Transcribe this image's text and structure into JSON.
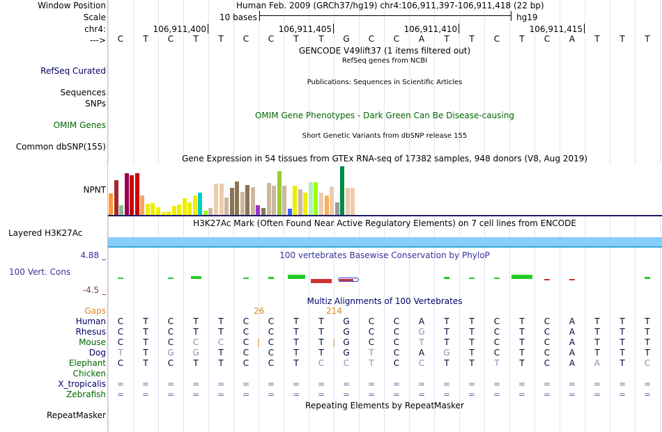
{
  "left_labels": {
    "window_position": "Window Position",
    "scale": "Scale",
    "chrom": "chr4:",
    "arrow": "--->",
    "refseq": "RefSeq Curated",
    "sequences": "Sequences",
    "snps": "SNPs",
    "omim": "OMIM Genes",
    "dbsnp": "Common dbSNP(155)",
    "npnt": "NPNT",
    "h3k27ac": "Layered H3K27Ac",
    "cons_max": "4.88 _",
    "cons_label": "100 Vert. Cons",
    "cons_min": "-4.5 _",
    "gaps": "Gaps",
    "species": [
      "Human",
      "Rhesus",
      "Mouse",
      "Dog",
      "Elephant",
      "Chicken",
      "X_tropicalis",
      "Zebrafish"
    ],
    "repeatmasker": "RepeatMasker"
  },
  "header": {
    "position": "Human Feb. 2009 (GRCh37/hg19)   chr4:106,911,397-106,911,418 (22 bp)",
    "scale_text": "10 bases",
    "assembly": "hg19",
    "coordinates": [
      "106,911,400",
      "106,911,405",
      "106,911,410",
      "106,911,415"
    ]
  },
  "sequence": [
    "C",
    "T",
    "C",
    "T",
    "T",
    "C",
    "C",
    "T",
    "T",
    "G",
    "C",
    "C",
    "A",
    "T",
    "T",
    "C",
    "T",
    "C",
    "A",
    "T",
    "T",
    "T"
  ],
  "tracks": {
    "gencode": "GENCODE V49lift37 (1 items filtered out)",
    "refseq": "RefSeq genes from NCBI",
    "publications": "Publications: Sequences in Scientific Articles",
    "omim": "OMIM Gene Phenotypes - Dark Green Can Be Disease-causing",
    "dbsnp": "Short Genetic Variants from dbSNP release 155",
    "gtex": "Gene Expression in 54 tissues from GTEx RNA-seq of 17382 samples, 948 donors (V8, Aug 2019)",
    "h3k27ac": "H3K27Ac Mark (Often Found Near Active Regulatory Elements) on 7 cell lines from ENCODE",
    "phylop": "100 vertebrates Basewise Conservation by PhyloP",
    "multiz": "Multiz Alignments of 100 Vertebrates",
    "gap_labels": [
      "26",
      "214"
    ],
    "repeatmasker": "Repeating Elements by RepeatMasker"
  },
  "alignment": {
    "Human": [
      "C",
      "T",
      "C",
      "T",
      "T",
      "C",
      "C",
      "T",
      "T",
      "G",
      "C",
      "C",
      "A",
      "T",
      "T",
      "C",
      "T",
      "C",
      "A",
      "T",
      "T",
      "T"
    ],
    "Rhesus": [
      "C",
      "T",
      "C",
      "T",
      "T",
      "C",
      "C",
      "T",
      "T",
      "G",
      "C",
      "C",
      "G",
      "T",
      "T",
      "C",
      "T",
      "C",
      "A",
      "T",
      "T",
      "T"
    ],
    "Mouse": [
      "C",
      "T",
      "C",
      "C",
      "C",
      "C",
      "|C",
      "T",
      "T",
      "|G",
      "C",
      "C",
      "T",
      "T",
      "T",
      "C",
      "T",
      "C",
      "A",
      "T",
      "T",
      "T"
    ],
    "Dog": [
      "T",
      "T",
      "G",
      "G",
      "T",
      "C",
      "C",
      "T",
      "T",
      "G",
      "T",
      "C",
      "A",
      "G",
      "T",
      "C",
      "T",
      "C",
      "A",
      "T",
      "T",
      "T"
    ],
    "Elephant": [
      "C",
      "T",
      "C",
      "T",
      "T",
      "C",
      "C",
      "T",
      "C",
      "C",
      "T",
      "C",
      "C",
      "T",
      "T",
      "T",
      "T",
      "C",
      "A",
      "A",
      "T",
      "C"
    ],
    "Chicken": [],
    "X_tropicalis": [
      "=",
      "=",
      "=",
      "=",
      "=",
      "=",
      "=",
      "=",
      "=",
      "=",
      "=",
      "=",
      "=",
      "=",
      "=",
      "=",
      "=",
      "=",
      "=",
      "=",
      "=",
      "="
    ],
    "Zebrafish": [
      "=",
      "=",
      "=",
      "=",
      "=",
      "=",
      "=",
      "=",
      "=",
      "=",
      "=",
      "=",
      "=",
      "=",
      "=",
      "=",
      "=",
      "=",
      "=",
      "=",
      "=",
      "="
    ]
  },
  "gtex_values": [
    {
      "color": "#ff9933",
      "v": 30
    },
    {
      "color": "#a52a2a",
      "v": 48
    },
    {
      "color": "#8fbc8f",
      "v": 13
    },
    {
      "color": "#99004c",
      "v": 58
    },
    {
      "color": "#cc0000",
      "v": 55
    },
    {
      "color": "#cc0000",
      "v": 58
    },
    {
      "color": "#f4a460",
      "v": 27
    },
    {
      "color": "#eeee00",
      "v": 15
    },
    {
      "color": "#eeee00",
      "v": 16
    },
    {
      "color": "#eeee00",
      "v": 11
    },
    {
      "color": "#eeee00",
      "v": 4
    },
    {
      "color": "#eeee00",
      "v": 5
    },
    {
      "color": "#eeee00",
      "v": 12
    },
    {
      "color": "#eeee00",
      "v": 14
    },
    {
      "color": "#eeee00",
      "v": 23
    },
    {
      "color": "#eeee00",
      "v": 17
    },
    {
      "color": "#eeee00",
      "v": 27
    },
    {
      "color": "#00cccc",
      "v": 31
    },
    {
      "color": "#99ff00",
      "v": 6
    },
    {
      "color": "#cdb79e",
      "v": 10
    },
    {
      "color": "#eecbad",
      "v": 43
    },
    {
      "color": "#eecbad",
      "v": 43
    },
    {
      "color": "#cdb79e",
      "v": 24
    },
    {
      "color": "#8b7355",
      "v": 37
    },
    {
      "color": "#8b7355",
      "v": 46
    },
    {
      "color": "#cdb79e",
      "v": 32
    },
    {
      "color": "#8b7355",
      "v": 41
    },
    {
      "color": "#cdb79e",
      "v": 38
    },
    {
      "color": "#9932cc",
      "v": 13
    },
    {
      "color": "#8b7355",
      "v": 10
    },
    {
      "color": "#cdb79e",
      "v": 44
    },
    {
      "color": "#cdb79e",
      "v": 40
    },
    {
      "color": "#9acd32",
      "v": 60
    },
    {
      "color": "#cdb79e",
      "v": 40
    },
    {
      "color": "#3366ff",
      "v": 9
    },
    {
      "color": "#eeee00",
      "v": 40
    },
    {
      "color": "#cdb79e",
      "v": 35
    },
    {
      "color": "#eeee00",
      "v": 31
    },
    {
      "color": "#b4eeb4",
      "v": 45
    },
    {
      "color": "#99ff00",
      "v": 45
    },
    {
      "color": "#eecbad",
      "v": 31
    },
    {
      "color": "#fcaf54",
      "v": 27
    },
    {
      "color": "#eecbad",
      "v": 39
    },
    {
      "color": "#999999",
      "v": 17
    },
    {
      "color": "#008b45",
      "v": 67
    },
    {
      "color": "#eecbad",
      "v": 37
    },
    {
      "color": "#eecbad",
      "v": 37
    }
  ],
  "colors": {
    "blue_label": "#000066",
    "dark_green": "#006600",
    "purple": "#333399",
    "brown": "#7f3f3f",
    "orange": "#dc8a20",
    "h3k27ac_fill": "#87cefa",
    "grid": "#e3e3f2",
    "navy_line": "#1a1a66"
  }
}
